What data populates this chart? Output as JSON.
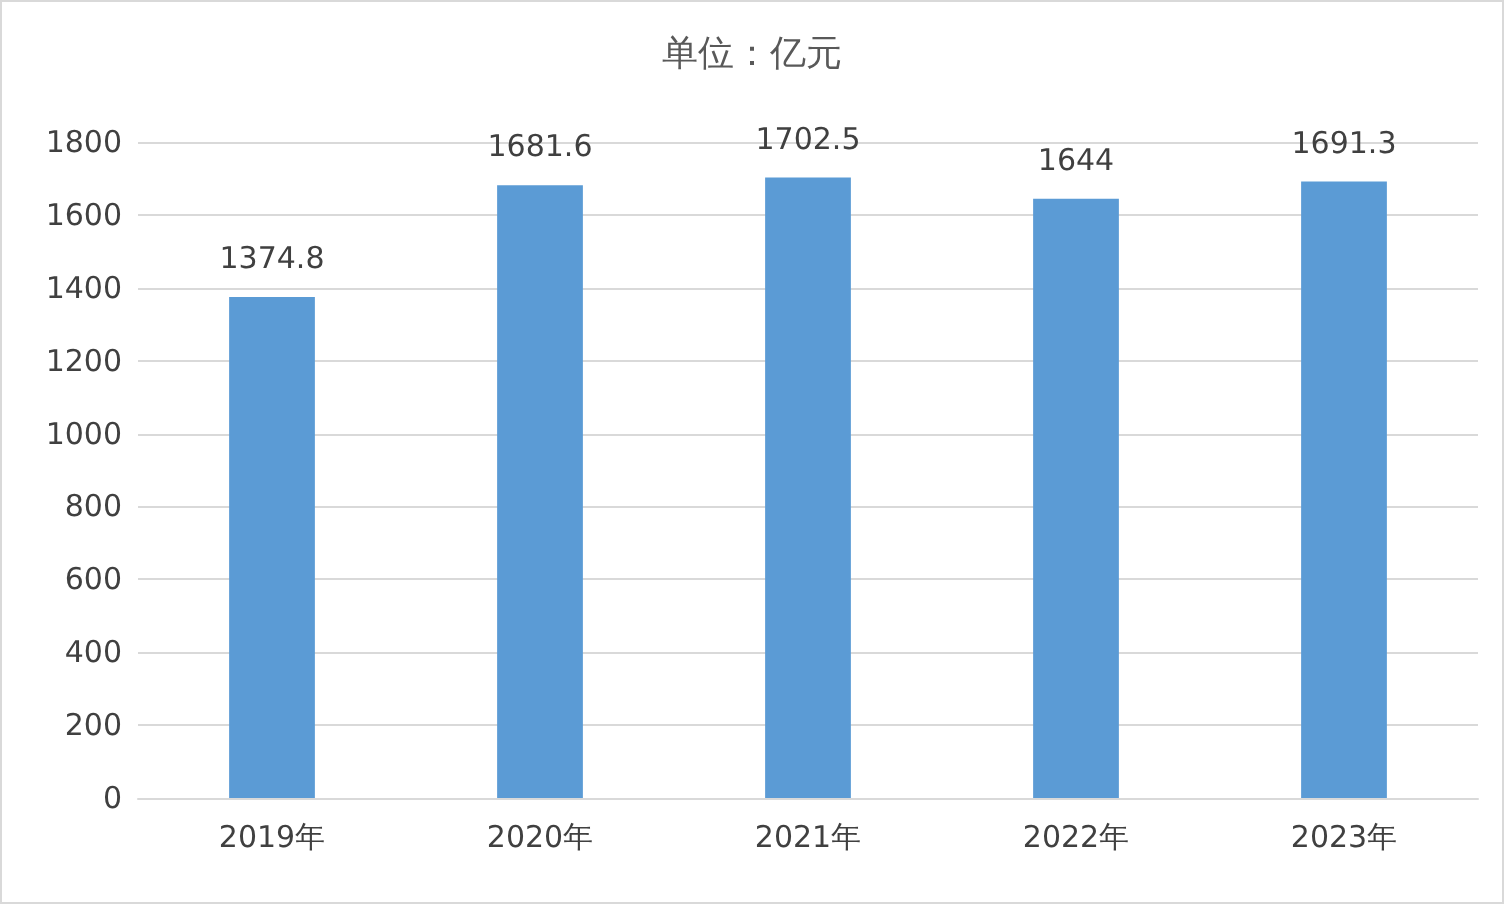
{
  "chart_data": {
    "type": "bar",
    "title": "单位：亿元",
    "categories": [
      "2019年",
      "2020年",
      "2021年",
      "2022年",
      "2023年"
    ],
    "values": [
      1374.8,
      1681.6,
      1702.5,
      1644,
      1691.3
    ],
    "color": "#5b9bd5",
    "ylim": [
      0,
      1800
    ],
    "yticks": [
      0,
      200,
      400,
      600,
      800,
      1000,
      1200,
      1400,
      1600,
      1800
    ],
    "grid": "y",
    "data_labels": true
  }
}
